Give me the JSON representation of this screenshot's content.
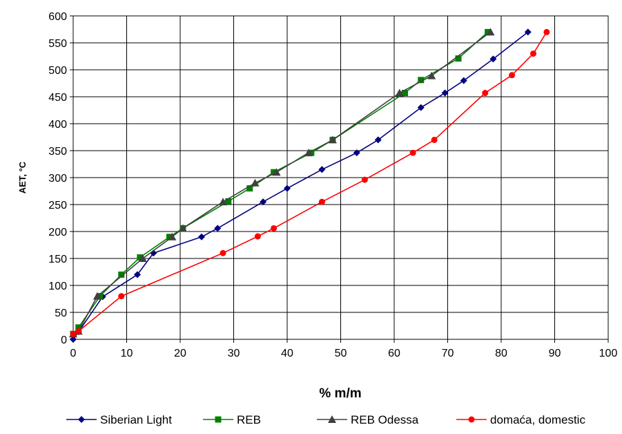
{
  "chart_data": {
    "type": "line",
    "title": "",
    "xlabel": "% m/m",
    "ylabel": "AET, °C",
    "xlim": [
      0,
      100
    ],
    "ylim": [
      0,
      600
    ],
    "xticks": [
      "0",
      "10",
      "20",
      "30",
      "40",
      "50",
      "60",
      "70",
      "80",
      "90",
      "100"
    ],
    "yticks": [
      "0",
      "50",
      "100",
      "150",
      "200",
      "250",
      "300",
      "350",
      "400",
      "450",
      "500",
      "550",
      "600"
    ],
    "grid": true,
    "legend_position": "bottom",
    "series": [
      {
        "name": "Siberian Light",
        "color": "#000080",
        "marker": "diamond",
        "points": [
          [
            0,
            0
          ],
          [
            1,
            14
          ],
          [
            5.5,
            79
          ],
          [
            12,
            120
          ],
          [
            15,
            160
          ],
          [
            24,
            190
          ],
          [
            27,
            206
          ],
          [
            35.5,
            255
          ],
          [
            40,
            280
          ],
          [
            46.5,
            315
          ],
          [
            53,
            346
          ],
          [
            57,
            370
          ],
          [
            65,
            430
          ],
          [
            69.5,
            457
          ],
          [
            73,
            480
          ],
          [
            78.5,
            520
          ],
          [
            85,
            570
          ]
        ]
      },
      {
        "name": "REB",
        "color": "#008000",
        "marker": "square",
        "points": [
          [
            0,
            10
          ],
          [
            1,
            22
          ],
          [
            5,
            80
          ],
          [
            9,
            120
          ],
          [
            12.5,
            152
          ],
          [
            18,
            190
          ],
          [
            20.5,
            206
          ],
          [
            29,
            256
          ],
          [
            33,
            280
          ],
          [
            37.5,
            310
          ],
          [
            44.5,
            346
          ],
          [
            48.5,
            370
          ],
          [
            62,
            457
          ],
          [
            65,
            481
          ],
          [
            72,
            521
          ],
          [
            77.5,
            570
          ]
        ]
      },
      {
        "name": "REB Odessa",
        "color": "#404040",
        "marker": "triangle",
        "points": [
          [
            0,
            10
          ],
          [
            1,
            15
          ],
          [
            4.5,
            80
          ],
          [
            13,
            150
          ],
          [
            18.5,
            190
          ],
          [
            20.5,
            206
          ],
          [
            28,
            255
          ],
          [
            34,
            290
          ],
          [
            38,
            310
          ],
          [
            44,
            346
          ],
          [
            48.5,
            370
          ],
          [
            61,
            457
          ],
          [
            67,
            489
          ],
          [
            78,
            570
          ]
        ]
      },
      {
        "name": "domaća, domestic",
        "color": "#ff0000",
        "marker": "circle",
        "points": [
          [
            0,
            10
          ],
          [
            1,
            15
          ],
          [
            9,
            80
          ],
          [
            28,
            160
          ],
          [
            34.5,
            191
          ],
          [
            37.5,
            206
          ],
          [
            46.5,
            255
          ],
          [
            54.5,
            296
          ],
          [
            63.5,
            346
          ],
          [
            67.5,
            370
          ],
          [
            77,
            457
          ],
          [
            82,
            490
          ],
          [
            86,
            530
          ],
          [
            88.5,
            570
          ]
        ]
      }
    ]
  }
}
